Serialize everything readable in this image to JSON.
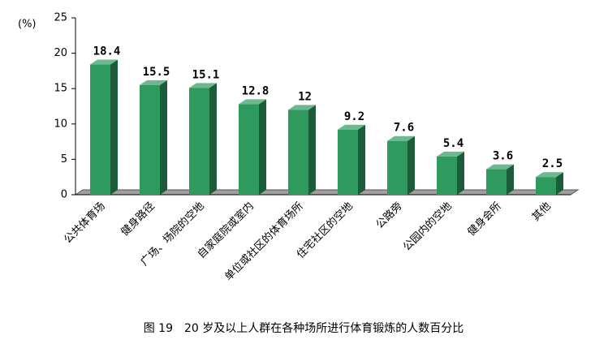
{
  "chart_data": {
    "type": "bar3d",
    "y_label": "(%)",
    "caption": "图 19　20 岁及以上人群在各种场所进行体育锻炼的人数百分比",
    "categories": [
      "公共体育场",
      "健身路径",
      "广场、场院的空地",
      "自家庭院或室内",
      "单位或社区的体育场所",
      "住宅社区的空地",
      "公路旁",
      "公园内的空地",
      "健身会所",
      "其他"
    ],
    "values": [
      18.4,
      15.5,
      15.1,
      12.8,
      12,
      9.2,
      7.6,
      5.4,
      3.6,
      2.5
    ],
    "color": "#2e9a5e",
    "ylim": [
      0,
      25
    ],
    "yticks": [
      0,
      5,
      10,
      15,
      20,
      25
    ]
  }
}
